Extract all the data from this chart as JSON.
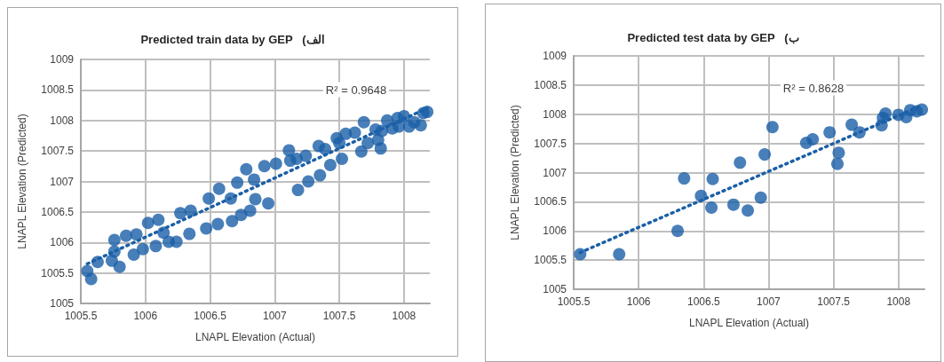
{
  "chart_data": [
    {
      "type": "scatter",
      "title": "Predicted train data by GEP   (الف",
      "xlabel": "LNAPL Elevation (Actual)",
      "ylabel": "LNAPL Elevation (Predicted)",
      "xlim": [
        1005.5,
        1008.2
      ],
      "xticks": [
        1005.5,
        1006,
        1006.5,
        1007,
        1007.5,
        1008
      ],
      "ylim": [
        1005,
        1009
      ],
      "yticks": [
        1005,
        1005.5,
        1006,
        1006.5,
        1007,
        1007.5,
        1008,
        1008.5,
        1009
      ],
      "grid": true,
      "marker": "circle",
      "annotations": [
        "R² = 0.9648"
      ],
      "series": [
        {
          "type": "line",
          "line_style": "dotted",
          "marker": "none",
          "color": "#1a5fa8",
          "x": [
            1005.55,
            1008.18
          ],
          "values": [
            1005.65,
            1008.2
          ]
        },
        {
          "color": "#1a5fa8",
          "x": [
            1005.55,
            1005.58,
            1005.63,
            1005.74,
            1005.76,
            1005.8,
            1005.76,
            1005.85,
            1005.93,
            1005.91,
            1005.98,
            1006.08,
            1006.02,
            1006.1,
            1006.14,
            1006.18,
            1006.24,
            1006.27,
            1006.35,
            1006.34,
            1006.47,
            1006.49,
            1006.57,
            1006.56,
            1006.66,
            1006.67,
            1006.74,
            1006.81,
            1006.71,
            1006.78,
            1006.84,
            1006.85,
            1006.95,
            1006.92,
            1007.01,
            1007.11,
            1007.12,
            1007.18,
            1007.26,
            1007.35,
            1007.17,
            1007.24,
            1007.34,
            1007.43,
            1007.52,
            1007.48,
            1007.55,
            1007.39,
            1007.62,
            1007.67,
            1007.69,
            1007.72,
            1007.78,
            1007.82,
            1007.8,
            1007.87,
            1007.91,
            1007.95,
            1008,
            1008.04,
            1008.08,
            1008.13,
            1008.15,
            1008.18,
            1007.96,
            1007.83,
            1007.5
          ],
          "values": [
            1005.53,
            1005.4,
            1005.68,
            1005.7,
            1005.85,
            1005.6,
            1006.04,
            1006.11,
            1006.13,
            1005.8,
            1005.89,
            1005.94,
            1006.32,
            1006.37,
            1006.16,
            1006.01,
            1006.01,
            1006.48,
            1006.52,
            1006.14,
            1006.23,
            1006.72,
            1006.88,
            1006.3,
            1006.72,
            1006.35,
            1006.45,
            1006.52,
            1006.98,
            1007.2,
            1007.03,
            1006.71,
            1006.64,
            1007.25,
            1007.29,
            1007.51,
            1007.34,
            1006.86,
            1007,
            1007.1,
            1007.37,
            1007.42,
            1007.58,
            1007.27,
            1007.37,
            1007.71,
            1007.78,
            1007.53,
            1007.8,
            1007.49,
            1007.97,
            1007.63,
            1007.85,
            1007.54,
            1007.68,
            1008,
            1007.87,
            1008.04,
            1008.07,
            1007.9,
            1007.97,
            1007.92,
            1008.12,
            1008.14,
            1007.9,
            1007.83,
            1007.63
          ]
        }
      ]
    },
    {
      "type": "scatter",
      "title": "Predicted test data by GEP   (ب",
      "xlabel": "LNAPL Elevation (Actual)",
      "ylabel": "LNAPL Elevation (Predicted)",
      "xlim": [
        1005.5,
        1008.2
      ],
      "xticks": [
        1005.5,
        1006,
        1006.5,
        1007,
        1007.5,
        1008
      ],
      "ylim": [
        1005,
        1009
      ],
      "yticks": [
        1005,
        1005.5,
        1006,
        1006.5,
        1007,
        1007.5,
        1008,
        1008.5,
        1009
      ],
      "grid": true,
      "marker": "circle",
      "annotations": [
        "R² = 0.8628"
      ],
      "series": [
        {
          "type": "line",
          "line_style": "dotted",
          "marker": "none",
          "color": "#1a5fa8",
          "x": [
            1005.55,
            1008.18
          ],
          "values": [
            1005.63,
            1008.15
          ]
        },
        {
          "color": "#1a5fa8",
          "x": [
            1005.55,
            1005.85,
            1006.3,
            1006.35,
            1006.48,
            1006.56,
            1006.57,
            1006.73,
            1006.78,
            1006.84,
            1006.94,
            1006.97,
            1007.03,
            1007.29,
            1007.34,
            1007.47,
            1007.53,
            1007.54,
            1007.64,
            1007.7,
            1007.87,
            1007.88,
            1007.9,
            1008,
            1008.06,
            1008.09,
            1008.14,
            1008.18
          ],
          "values": [
            1005.6,
            1005.6,
            1006,
            1006.9,
            1006.6,
            1006.4,
            1006.89,
            1006.45,
            1007.17,
            1006.35,
            1006.57,
            1007.31,
            1007.78,
            1007.51,
            1007.57,
            1007.69,
            1007.15,
            1007.34,
            1007.82,
            1007.69,
            1007.81,
            1007.94,
            1008.01,
            1007.99,
            1007.95,
            1008.07,
            1008.05,
            1008.08
          ]
        }
      ]
    }
  ]
}
